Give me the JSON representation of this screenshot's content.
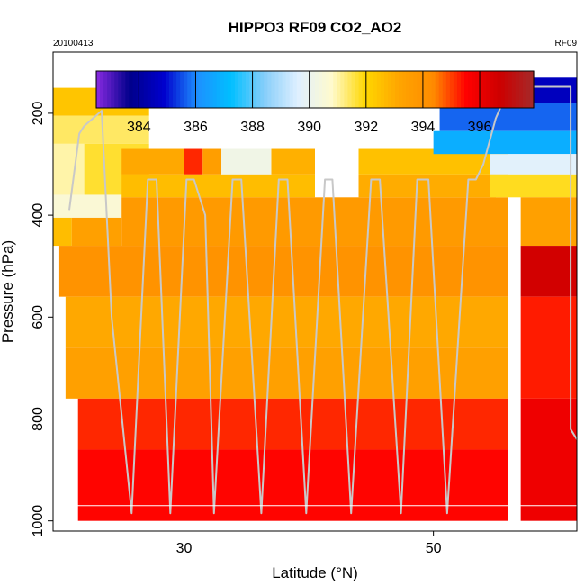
{
  "chart_data": {
    "type": "heatmap",
    "title": "HIPPO3 RF09 CO2_AO2",
    "date_label": "20100413",
    "flight_label": "RF09",
    "xlabel": "Latitude (°N)",
    "ylabel": "Pressure (hPa)",
    "xlim": [
      19.5,
      61.5
    ],
    "ylim": [
      1020,
      80
    ],
    "x_ticks": [
      "30",
      "50"
    ],
    "y_ticks": [
      "200",
      "400",
      "600",
      "800",
      "1000"
    ],
    "x_tick_values": [
      30,
      50
    ],
    "y_tick_values": [
      200,
      400,
      600,
      800,
      1000
    ],
    "colorbar": {
      "range": [
        382.5,
        397.9
      ],
      "ticks": [
        "384",
        "386",
        "388",
        "390",
        "392",
        "394",
        "396"
      ],
      "tick_values": [
        384,
        386,
        388,
        390,
        392,
        394,
        396
      ],
      "colors": [
        "#8a2be2",
        "#00008b",
        "#0000cd",
        "#1e90ff",
        "#00bfff",
        "#87cefa",
        "#e0f0ff",
        "#fffacd",
        "#ffd700",
        "#ffa500",
        "#ff8c00",
        "#ff0000",
        "#cd0000",
        "#a52a2a"
      ]
    },
    "cells": [
      {
        "lat": [
          19.5,
          27.2
        ],
        "p": [
          150,
          205
        ],
        "co2": 392.4
      },
      {
        "lat": [
          19.5,
          27.2
        ],
        "p": [
          205,
          260
        ],
        "co2": 391.4
      },
      {
        "lat": [
          19.5,
          22.0
        ],
        "p": [
          260,
          360
        ],
        "co2": 391.0
      },
      {
        "lat": [
          22.0,
          27.2
        ],
        "p": [
          260,
          360
        ],
        "co2": 391.7
      },
      {
        "lat": [
          19.5,
          27.2
        ],
        "p": [
          360,
          405
        ],
        "co2": 390.6
      },
      {
        "lat": [
          19.5,
          21.0
        ],
        "p": [
          405,
          460
        ],
        "co2": 392.6
      },
      {
        "lat": [
          21.0,
          25.0
        ],
        "p": [
          405,
          460
        ],
        "co2": 393.4
      },
      {
        "lat": [
          25.0,
          30.0
        ],
        "p": [
          270,
          320
        ],
        "co2": 393.1
      },
      {
        "lat": [
          30.0,
          31.5
        ],
        "p": [
          270,
          320
        ],
        "co2": 395.2
      },
      {
        "lat": [
          31.5,
          33.0
        ],
        "p": [
          270,
          320
        ],
        "co2": 393.5
      },
      {
        "lat": [
          33.0,
          37.0
        ],
        "p": [
          270,
          320
        ],
        "co2": 390.2
      },
      {
        "lat": [
          37.0,
          40.5
        ],
        "p": [
          270,
          320
        ],
        "co2": 392.9
      },
      {
        "lat": [
          25.0,
          40.5
        ],
        "p": [
          320,
          365
        ],
        "co2": 392.6
      },
      {
        "lat": [
          25.0,
          56.0
        ],
        "p": [
          365,
          460
        ],
        "co2": 393.7
      },
      {
        "lat": [
          20.0,
          56.0
        ],
        "p": [
          460,
          560
        ],
        "co2": 394.0
      },
      {
        "lat": [
          20.5,
          56.0
        ],
        "p": [
          560,
          660
        ],
        "co2": 393.1
      },
      {
        "lat": [
          20.5,
          56.0
        ],
        "p": [
          660,
          760
        ],
        "co2": 393.4
      },
      {
        "lat": [
          21.5,
          56.0
        ],
        "p": [
          760,
          860
        ],
        "co2": 395.2
      },
      {
        "lat": [
          21.5,
          56.0
        ],
        "p": [
          860,
          1000
        ],
        "co2": 395.5
      },
      {
        "lat": [
          44.0,
          56.0
        ],
        "p": [
          270,
          320
        ],
        "co2": 392.5
      },
      {
        "lat": [
          44.0,
          55.0
        ],
        "p": [
          320,
          365
        ],
        "co2": 393.0
      },
      {
        "lat": [
          51.5,
          61.5
        ],
        "p": [
          130,
          180
        ],
        "co2": 384.6
      },
      {
        "lat": [
          50.5,
          61.5
        ],
        "p": [
          180,
          235
        ],
        "co2": 385.7
      },
      {
        "lat": [
          50.0,
          61.5
        ],
        "p": [
          235,
          280
        ],
        "co2": 386.8
      },
      {
        "lat": [
          54.5,
          61.5
        ],
        "p": [
          280,
          320
        ],
        "co2": 389.7
      },
      {
        "lat": [
          54.5,
          61.5
        ],
        "p": [
          320,
          365
        ],
        "co2": 391.8
      },
      {
        "lat": [
          57.0,
          61.5
        ],
        "p": [
          365,
          460
        ],
        "co2": 393.4
      },
      {
        "lat": [
          57.0,
          61.5
        ],
        "p": [
          460,
          560
        ],
        "co2": 396.6
      },
      {
        "lat": [
          57.0,
          61.5
        ],
        "p": [
          560,
          760
        ],
        "co2": 395.3
      },
      {
        "lat": [
          57.0,
          61.5
        ],
        "p": [
          760,
          1000
        ],
        "co2": 395.9
      }
    ],
    "flight_track": [
      {
        "lat": 20.8,
        "p": 390
      },
      {
        "lat": 21.6,
        "p": 240
      },
      {
        "lat": 22.0,
        "p": 225
      },
      {
        "lat": 23.4,
        "p": 195
      },
      {
        "lat": 24.2,
        "p": 600
      },
      {
        "lat": 25.8,
        "p": 985
      },
      {
        "lat": 27.1,
        "p": 330
      },
      {
        "lat": 27.8,
        "p": 330
      },
      {
        "lat": 28.9,
        "p": 985
      },
      {
        "lat": 30.2,
        "p": 330
      },
      {
        "lat": 30.8,
        "p": 330
      },
      {
        "lat": 31.7,
        "p": 400
      },
      {
        "lat": 32.4,
        "p": 985
      },
      {
        "lat": 33.9,
        "p": 330
      },
      {
        "lat": 34.6,
        "p": 330
      },
      {
        "lat": 36.2,
        "p": 985
      },
      {
        "lat": 37.6,
        "p": 330
      },
      {
        "lat": 38.3,
        "p": 330
      },
      {
        "lat": 39.8,
        "p": 985
      },
      {
        "lat": 41.3,
        "p": 330
      },
      {
        "lat": 41.9,
        "p": 330
      },
      {
        "lat": 43.4,
        "p": 985
      },
      {
        "lat": 45.0,
        "p": 330
      },
      {
        "lat": 45.7,
        "p": 330
      },
      {
        "lat": 47.4,
        "p": 985
      },
      {
        "lat": 48.7,
        "p": 330
      },
      {
        "lat": 49.6,
        "p": 330
      },
      {
        "lat": 51.1,
        "p": 985
      },
      {
        "lat": 52.8,
        "p": 330
      },
      {
        "lat": 53.4,
        "p": 330
      },
      {
        "lat": 54.0,
        "p": 300
      },
      {
        "lat": 55.0,
        "p": 210
      },
      {
        "lat": 55.8,
        "p": 165
      },
      {
        "lat": 57.0,
        "p": 148
      },
      {
        "lat": 60.2,
        "p": 148
      },
      {
        "lat": 61.0,
        "p": 148
      },
      {
        "lat": 61.0,
        "p": 600
      },
      {
        "lat": 61.0,
        "p": 820
      },
      {
        "lat": 61.5,
        "p": 840
      }
    ],
    "grid": false,
    "legend": "top"
  }
}
